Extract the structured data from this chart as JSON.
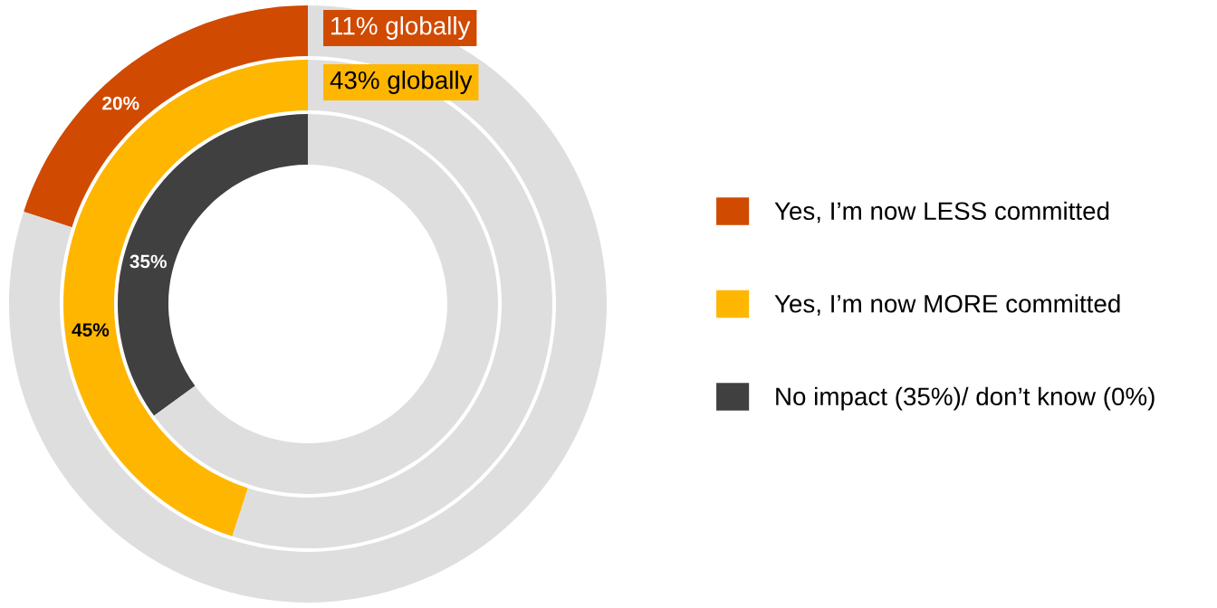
{
  "chart_data": {
    "type": "donut",
    "legend": "right",
    "series": [
      {
        "name": "Yes, I’m now LESS committed",
        "colors": [
          "#d04a02",
          "#dedede"
        ],
        "values": [
          20,
          80
        ],
        "value_labels": [
          "20%",
          null
        ]
      },
      {
        "name": "Yes, I’m now MORE committed",
        "colors": [
          "#ffb600",
          "#dedede"
        ],
        "values": [
          45,
          55
        ],
        "value_labels": [
          "45%",
          null
        ]
      },
      {
        "name": "No impact (35%)/ don’t know (0%)",
        "colors": [
          "#404041",
          "#dedede"
        ],
        "values": [
          35,
          65
        ],
        "value_labels": [
          "35%",
          null
        ]
      }
    ],
    "annotations": [
      "11% globally",
      "43% globally"
    ]
  }
}
